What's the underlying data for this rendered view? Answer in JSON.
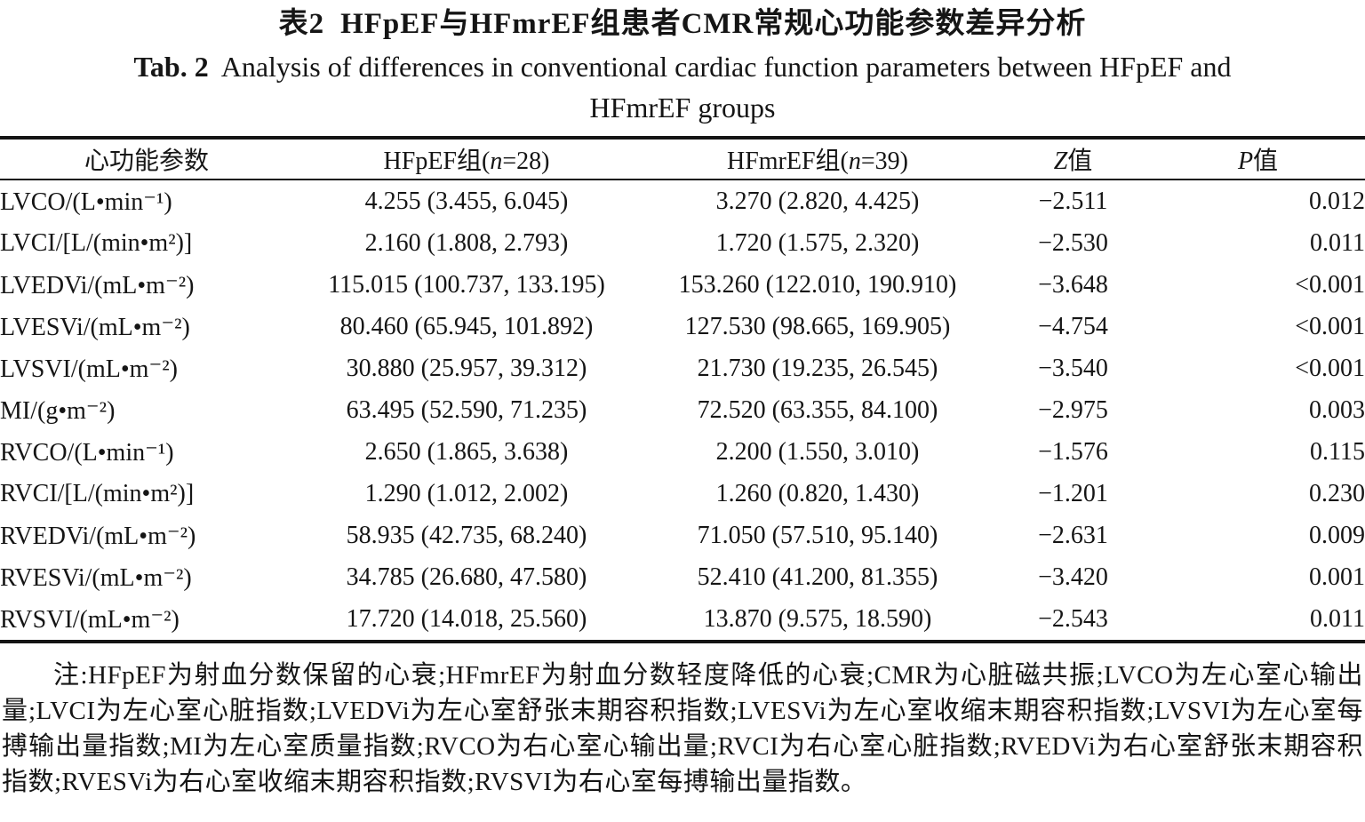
{
  "title": {
    "zh_label": "表2",
    "zh_text": "HFpEF与HFmrEF组患者CMR常规心功能参数差异分析",
    "en_label": "Tab. 2",
    "en_text_1": "Analysis of differences in conventional cardiac function parameters between HFpEF and",
    "en_text_2": "HFmrEF groups"
  },
  "table": {
    "header": {
      "param": "心功能参数",
      "group1_prefix": "HFpEF组(",
      "group1_n": "n",
      "group1_suffix": "=28)",
      "group2_prefix": "HFmrEF组(",
      "group2_n": "n",
      "group2_suffix": "=39)",
      "z_symbol": "Z",
      "z_suffix": "值",
      "p_symbol": "P",
      "p_suffix": "值"
    },
    "rows": [
      {
        "param": "LVCO/(L•min⁻¹)",
        "hfpef": "4.255 (3.455, 6.045)",
        "hfmref": "3.270 (2.820, 4.425)",
        "z": "−2.511",
        "p": "0.012"
      },
      {
        "param": "LVCI/[L/(min•m²)]",
        "hfpef": "2.160 (1.808, 2.793)",
        "hfmref": "1.720 (1.575, 2.320)",
        "z": "−2.530",
        "p": "0.011"
      },
      {
        "param": "LVEDVi/(mL•m⁻²)",
        "hfpef": "115.015 (100.737, 133.195)",
        "hfmref": "153.260 (122.010, 190.910)",
        "z": "−3.648",
        "p": "<0.001"
      },
      {
        "param": "LVESVi/(mL•m⁻²)",
        "hfpef": "80.460 (65.945, 101.892)",
        "hfmref": "127.530 (98.665, 169.905)",
        "z": "−4.754",
        "p": "<0.001"
      },
      {
        "param": "LVSVI/(mL•m⁻²)",
        "hfpef": "30.880 (25.957, 39.312)",
        "hfmref": "21.730 (19.235, 26.545)",
        "z": "−3.540",
        "p": "<0.001"
      },
      {
        "param": "MI/(g•m⁻²)",
        "hfpef": "63.495 (52.590, 71.235)",
        "hfmref": "72.520 (63.355, 84.100)",
        "z": "−2.975",
        "p": "0.003"
      },
      {
        "param": "RVCO/(L•min⁻¹)",
        "hfpef": "2.650 (1.865, 3.638)",
        "hfmref": "2.200 (1.550, 3.010)",
        "z": "−1.576",
        "p": "0.115"
      },
      {
        "param": "RVCI/[L/(min•m²)]",
        "hfpef": "1.290 (1.012, 2.002)",
        "hfmref": "1.260 (0.820, 1.430)",
        "z": "−1.201",
        "p": "0.230"
      },
      {
        "param": "RVEDVi/(mL•m⁻²)",
        "hfpef": "58.935 (42.735, 68.240)",
        "hfmref": "71.050 (57.510, 95.140)",
        "z": "−2.631",
        "p": "0.009"
      },
      {
        "param": "RVESVi/(mL•m⁻²)",
        "hfpef": "34.785 (26.680, 47.580)",
        "hfmref": "52.410 (41.200, 81.355)",
        "z": "−3.420",
        "p": "0.001"
      },
      {
        "param": "RVSVI/(mL•m⁻²)",
        "hfpef": "17.720 (14.018, 25.560)",
        "hfmref": "13.870 (9.575, 18.590)",
        "z": "−2.543",
        "p": "0.011"
      }
    ]
  },
  "footnote": "注:HFpEF为射血分数保留的心衰;HFmrEF为射血分数轻度降低的心衰;CMR为心脏磁共振;LVCO为左心室心输出量;LVCI为左心室心脏指数;LVEDVi为左心室舒张末期容积指数;LVESVi为左心室收缩末期容积指数;LVSVI为左心室每搏输出量指数;MI为左心室质量指数;RVCO为右心室心输出量;RVCI为右心室心脏指数;RVEDVi为右心室舒张末期容积指数;RVESVi为右心室收缩末期容积指数;RVSVI为右心室每搏输出量指数。"
}
